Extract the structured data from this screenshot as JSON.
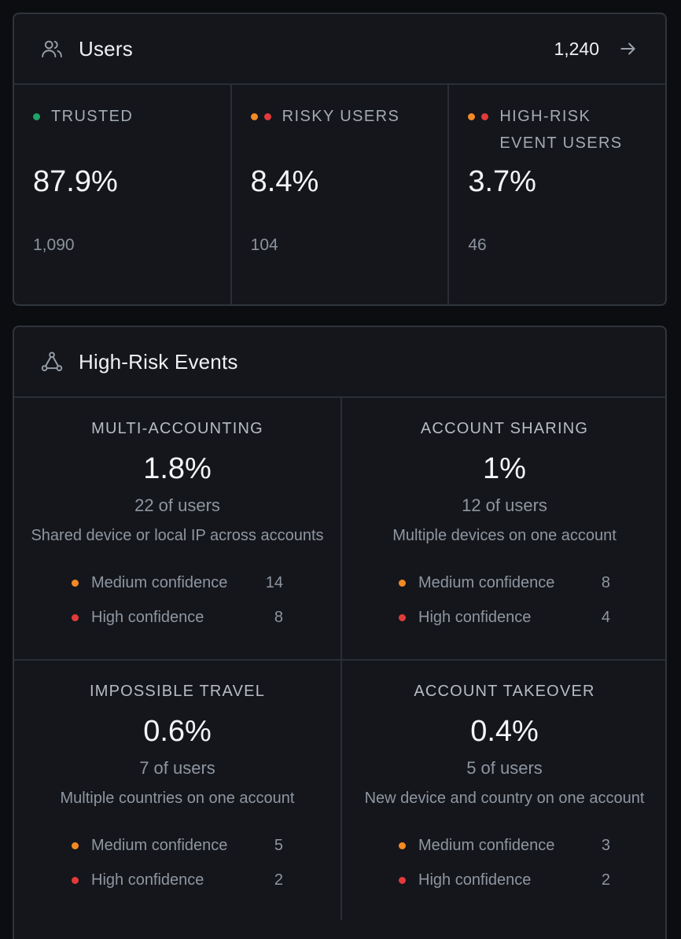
{
  "colors": {
    "green": "#1fa36a",
    "orange": "#f28a24",
    "red": "#e23a3a"
  },
  "users_card": {
    "icon": "users-icon",
    "title": "Users",
    "total": "1,240",
    "arrow_icon": "arrow-right-icon",
    "stats": [
      {
        "label": "TRUSTED",
        "value": "87.9%",
        "count": "1,090",
        "dots": [
          "green"
        ]
      },
      {
        "label": "RISKY USERS",
        "value": "8.4%",
        "count": "104",
        "dots": [
          "orange",
          "red"
        ]
      },
      {
        "label": "HIGH-RISK EVENT USERS",
        "value": "3.7%",
        "count": "46",
        "dots": [
          "orange",
          "red"
        ]
      }
    ]
  },
  "events_card": {
    "icon": "network-icon",
    "title": "High-Risk Events",
    "events": [
      {
        "title": "MULTI-ACCOUNTING",
        "value": "1.8%",
        "users": "22 of users",
        "description": "Shared device or local IP across accounts",
        "medium_label": "Medium confidence",
        "medium_count": "14",
        "high_label": "High confidence",
        "high_count": "8"
      },
      {
        "title": "ACCOUNT SHARING",
        "value": "1%",
        "users": "12 of users",
        "description": "Multiple devices on one account",
        "medium_label": "Medium confidence",
        "medium_count": "8",
        "high_label": "High confidence",
        "high_count": "4"
      },
      {
        "title": "IMPOSSIBLE TRAVEL",
        "value": "0.6%",
        "users": "7 of users",
        "description": "Multiple countries on one account",
        "medium_label": "Medium confidence",
        "medium_count": "5",
        "high_label": "High confidence",
        "high_count": "2"
      },
      {
        "title": "ACCOUNT TAKEOVER",
        "value": "0.4%",
        "users": "5 of users",
        "description": "New device and country on one account",
        "medium_label": "Medium confidence",
        "medium_count": "3",
        "high_label": "High confidence",
        "high_count": "2"
      }
    ]
  }
}
